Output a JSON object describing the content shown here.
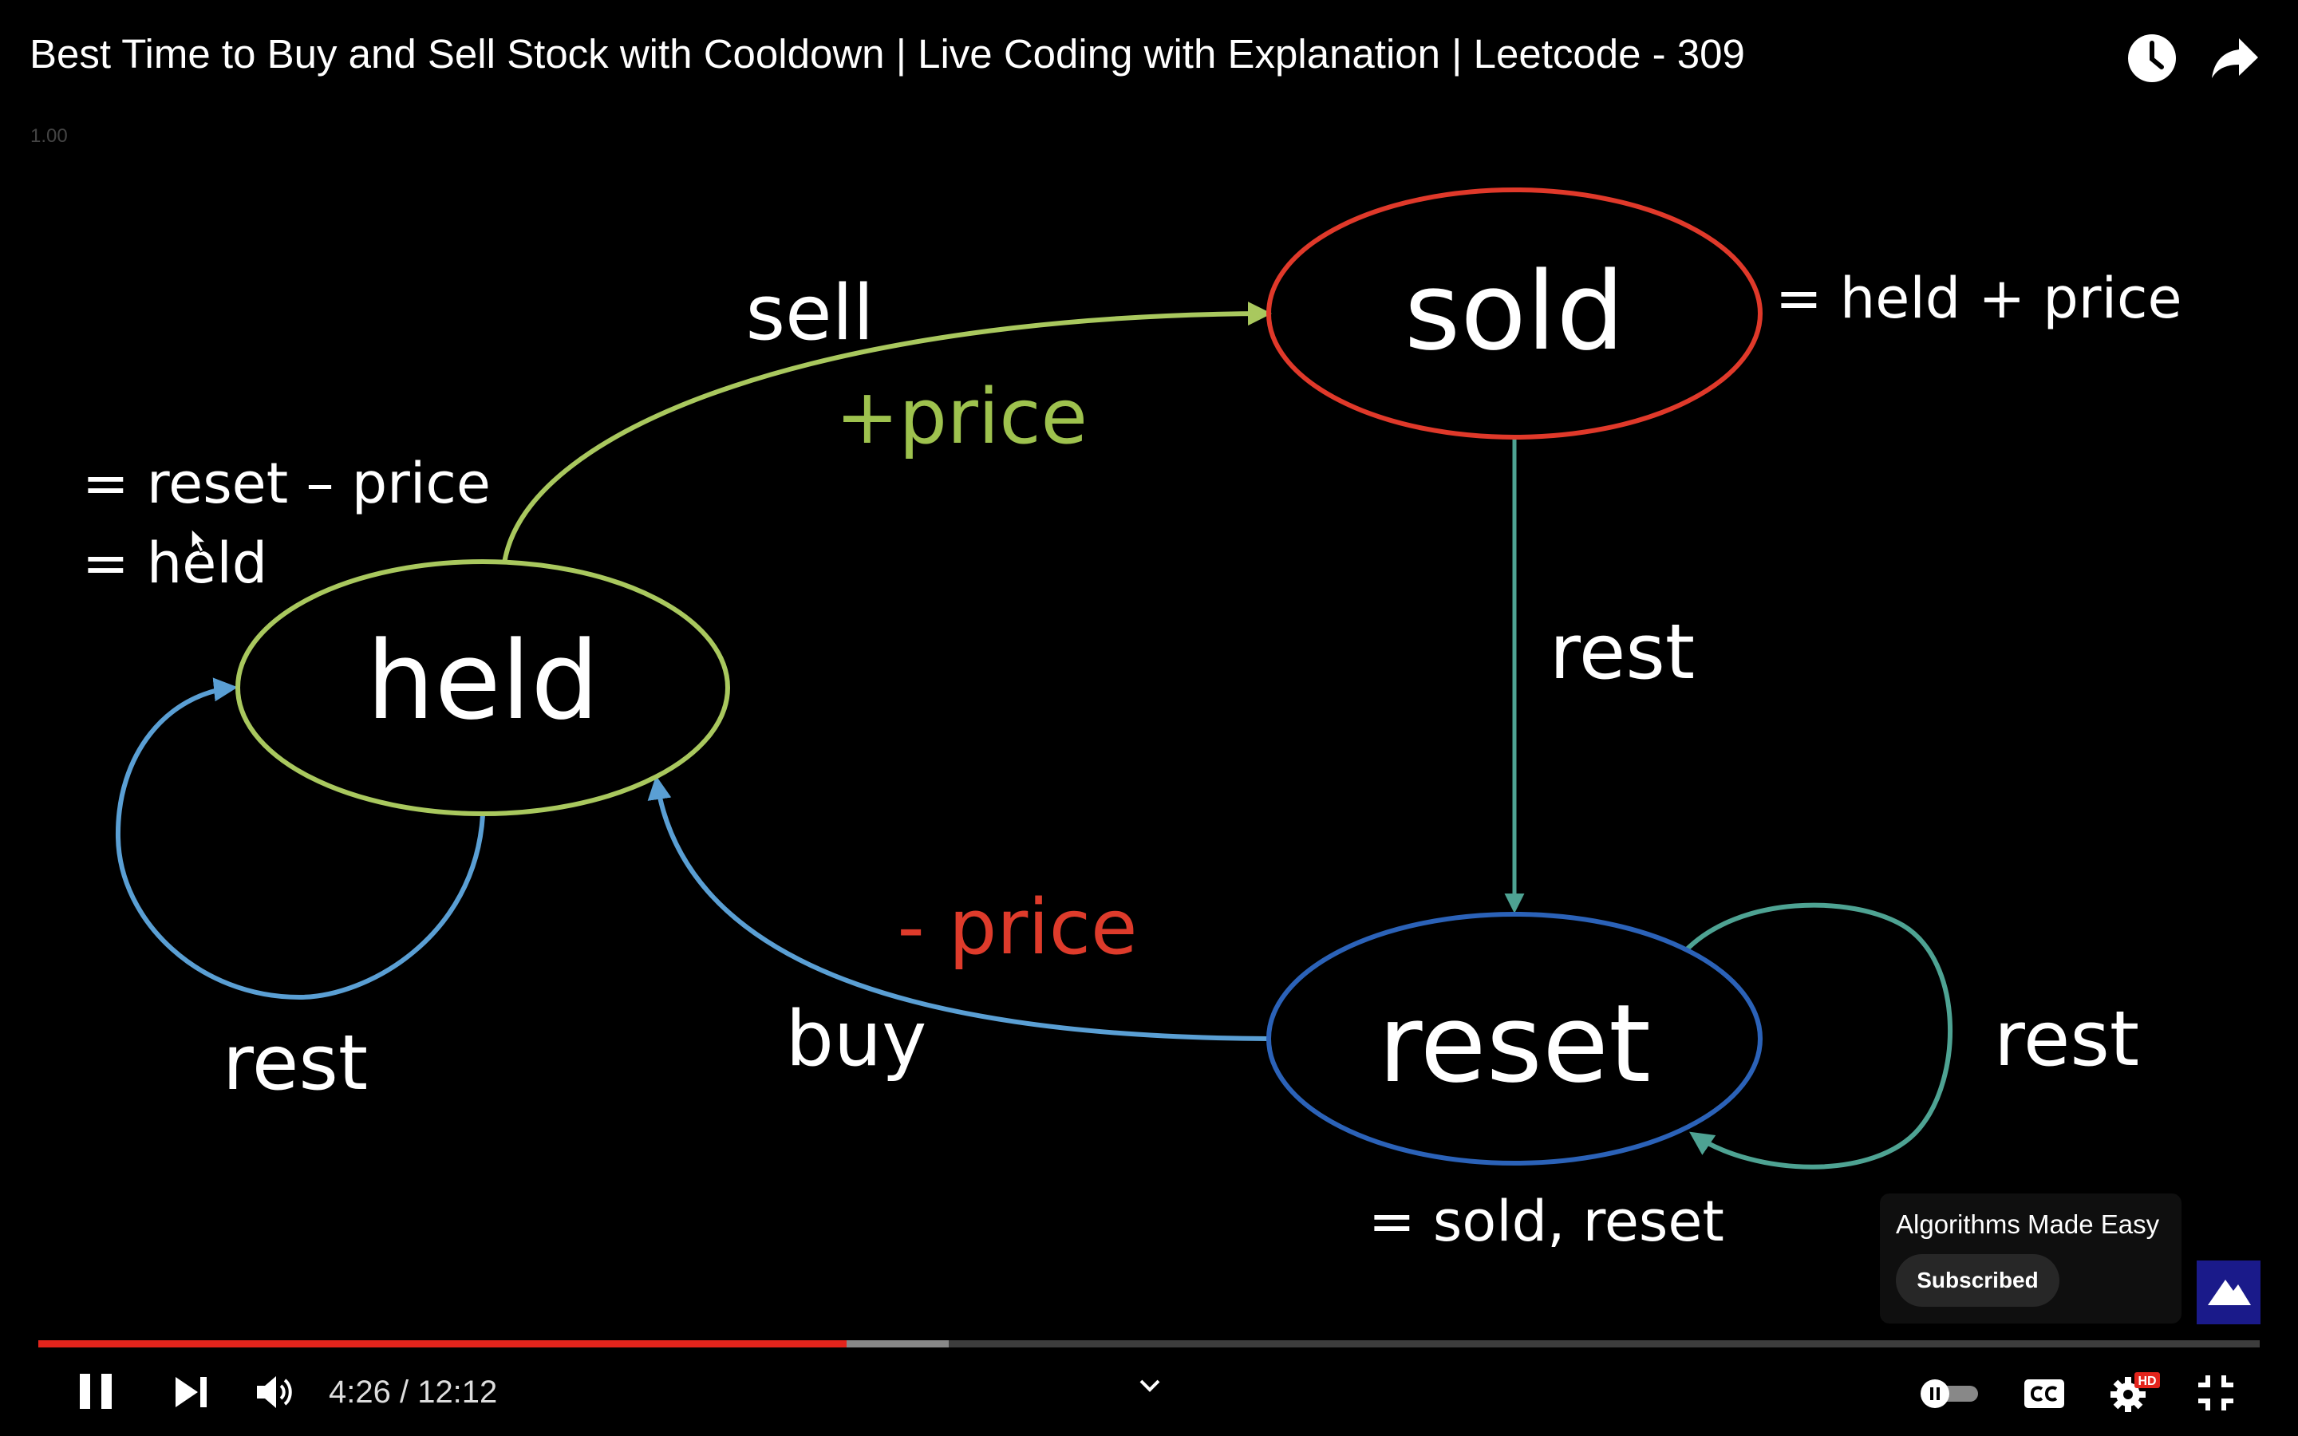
{
  "video": {
    "title": "Best Time to Buy and Sell Stock with Cooldown | Live Coding with Explanation | Leetcode - 309",
    "speed_label": "1.00",
    "watch_later_icon": "clock-icon",
    "share_icon": "share-arrow-icon"
  },
  "slide": {
    "states": {
      "held": "held",
      "sold": "sold",
      "reset": "reset"
    },
    "edges": {
      "sell": "sell",
      "sell_effect": "+price",
      "buy": "buy",
      "buy_effect": "- price",
      "rest_sold_reset": "rest",
      "rest_held": "rest",
      "rest_reset": "rest"
    },
    "formulas": {
      "held_1": "= reset – price",
      "held_2": "= held",
      "sold": "= held + price",
      "reset": "= sold, reset"
    },
    "colors": {
      "held": "#a9c85e",
      "sold": "#e0392a",
      "reset": "#2b62b8",
      "buy_arrow": "#5a9fd4",
      "rest_teal": "#4ea393",
      "price_plus": "#9ec24e",
      "price_minus": "#de3b2b"
    }
  },
  "channel_card": {
    "name": "Algorithms Made Easy",
    "subscribe_label": "Subscribed"
  },
  "player": {
    "current_time": "4:26",
    "duration": "12:12",
    "time_display": "4:26 / 12:12",
    "progress_fraction": 0.3637,
    "buffered_fraction": 0.41,
    "quality_badge": "HD",
    "progress_color": "#e3241c"
  }
}
